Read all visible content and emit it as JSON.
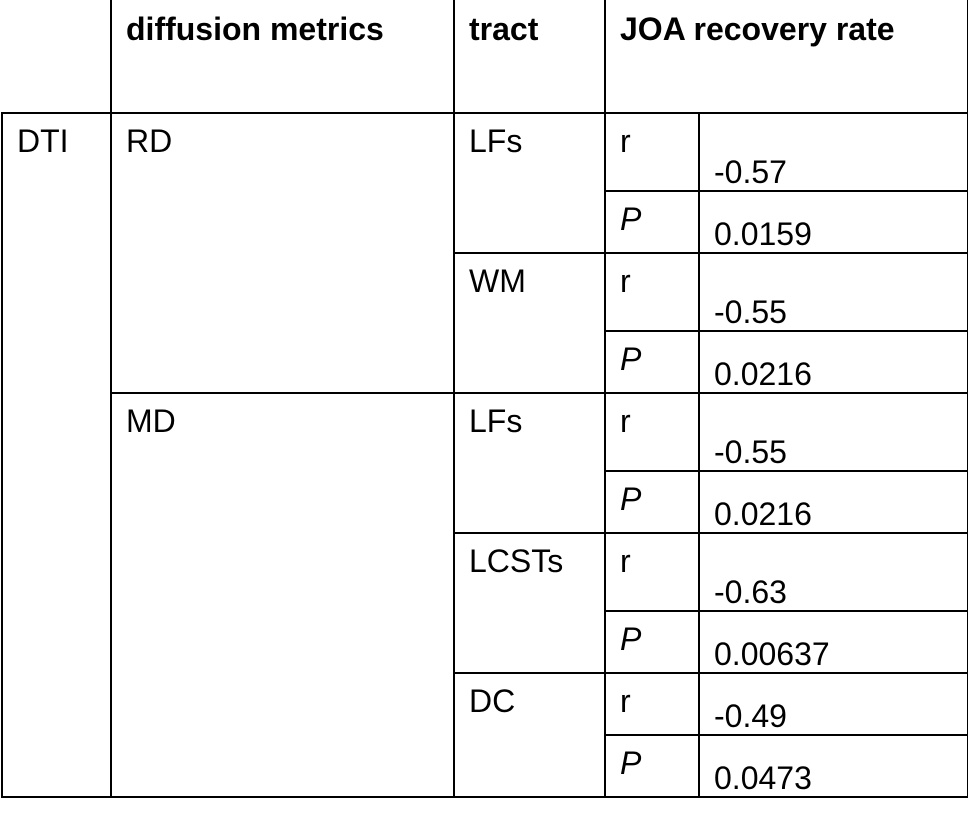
{
  "header": {
    "columns": [
      "diffusion metrics",
      "tract",
      "JOA recovery rate"
    ]
  },
  "group": "DTI",
  "metrics": [
    {
      "name": "RD",
      "tracts": [
        {
          "name": "LFs",
          "stats": [
            {
              "label": "r",
              "value": "-0.57"
            },
            {
              "label": "P",
              "value": "0.0159"
            }
          ]
        },
        {
          "name": "WM",
          "stats": [
            {
              "label": "r",
              "value": "-0.55"
            },
            {
              "label": "P",
              "value": "0.0216"
            }
          ]
        }
      ]
    },
    {
      "name": "MD",
      "tracts": [
        {
          "name": "LFs",
          "stats": [
            {
              "label": "r",
              "value": "-0.55"
            },
            {
              "label": "P",
              "value": "0.0216"
            }
          ]
        },
        {
          "name": "LCSTs",
          "stats": [
            {
              "label": "r",
              "value": "-0.63"
            },
            {
              "label": "P",
              "value": "0.00637"
            }
          ]
        },
        {
          "name": "DC",
          "stats": [
            {
              "label": "r",
              "value": "-0.49"
            },
            {
              "label": "P",
              "value": "0.0473"
            }
          ]
        }
      ]
    }
  ]
}
